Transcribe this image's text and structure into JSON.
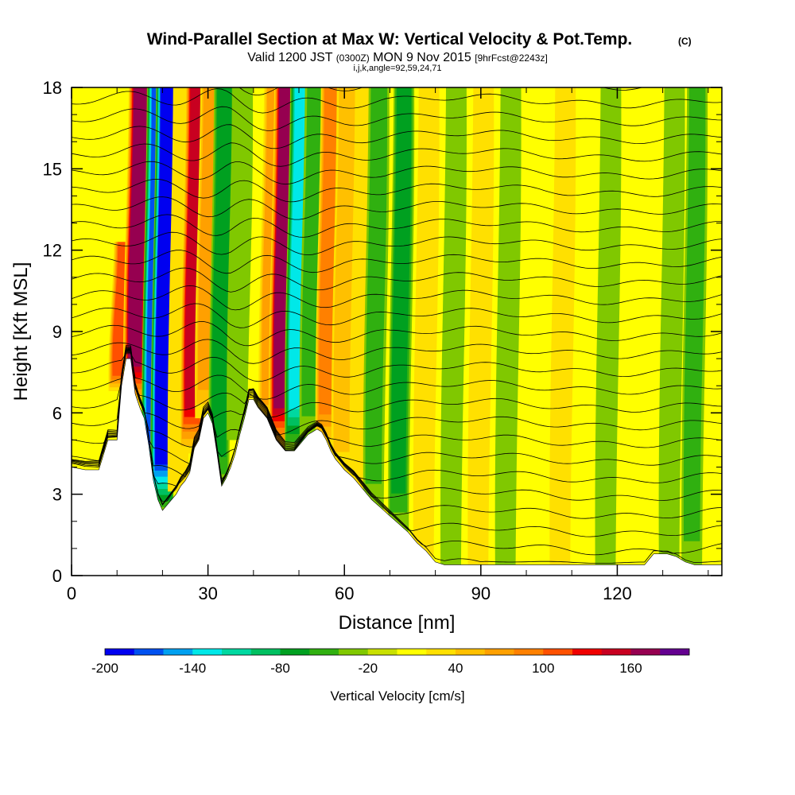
{
  "title": {
    "main": "Wind-Parallel Section at Max W: Vertical Velocity & Pot.Temp.",
    "copyright": "(C)",
    "valid_prefix": "Valid 1200 JST",
    "valid_z": "(0300Z)",
    "valid_date": "MON 9 Nov 2015",
    "forecast": "[9hrFcst@2243z]",
    "indices": "i,j,k,angle=92,59,24,71"
  },
  "colors": {
    "terrain": "#ffffff",
    "background": "#ffffff",
    "contour": "#000000",
    "palette": [
      "#0000f0",
      "#0050f0",
      "#00a0f0",
      "#00e8e8",
      "#00d8a0",
      "#00c060",
      "#00a020",
      "#30b010",
      "#80c800",
      "#c8e000",
      "#ffff00",
      "#ffe000",
      "#ffc000",
      "#ffa000",
      "#ff8000",
      "#ff5000",
      "#f00000",
      "#c80020",
      "#960050",
      "#640090"
    ]
  },
  "chart_data": {
    "type": "heatmap",
    "xlabel": "Distance [nm]",
    "ylabel": "Height [Kft MSL]",
    "xlim": [
      0,
      143
    ],
    "ylim": [
      0,
      18
    ],
    "x_ticks": [
      "0",
      "30",
      "60",
      "90",
      "120"
    ],
    "y_ticks": [
      "0",
      "3",
      "6",
      "9",
      "12",
      "15",
      "18"
    ],
    "colorbar": {
      "title": "Vertical Velocity [cm/s]",
      "min": -200,
      "max": 200,
      "step": 20,
      "labels": [
        "-200",
        "-140",
        "-80",
        "-20",
        "40",
        "100",
        "160"
      ]
    },
    "terrain_profile": [
      [
        0,
        4.0
      ],
      [
        3,
        3.9
      ],
      [
        6,
        3.9
      ],
      [
        8,
        5.0
      ],
      [
        10,
        5.0
      ],
      [
        11,
        7.0
      ],
      [
        12,
        8.0
      ],
      [
        13,
        8.0
      ],
      [
        14,
        6.7
      ],
      [
        15,
        6.2
      ],
      [
        16,
        5.8
      ],
      [
        17,
        4.8
      ],
      [
        18,
        3.5
      ],
      [
        19,
        2.8
      ],
      [
        20,
        2.4
      ],
      [
        21,
        2.6
      ],
      [
        22,
        2.8
      ],
      [
        23,
        3.0
      ],
      [
        24,
        3.3
      ],
      [
        25,
        3.5
      ],
      [
        26,
        3.8
      ],
      [
        27,
        4.7
      ],
      [
        28,
        5.0
      ],
      [
        29,
        5.8
      ],
      [
        30,
        6.0
      ],
      [
        31,
        5.6
      ],
      [
        32,
        4.5
      ],
      [
        33,
        3.3
      ],
      [
        34,
        3.6
      ],
      [
        35,
        4.0
      ],
      [
        36,
        4.5
      ],
      [
        37,
        5.2
      ],
      [
        38,
        5.8
      ],
      [
        39,
        6.5
      ],
      [
        40,
        6.5
      ],
      [
        41,
        6.2
      ],
      [
        42,
        6.0
      ],
      [
        43,
        5.8
      ],
      [
        44,
        5.4
      ],
      [
        45,
        5.0
      ],
      [
        46,
        4.8
      ],
      [
        47,
        4.6
      ],
      [
        48,
        4.6
      ],
      [
        49,
        4.6
      ],
      [
        50,
        4.8
      ],
      [
        51,
        5.0
      ],
      [
        52,
        5.2
      ],
      [
        53,
        5.3
      ],
      [
        54,
        5.4
      ],
      [
        55,
        5.3
      ],
      [
        56,
        5.0
      ],
      [
        57,
        4.6
      ],
      [
        58,
        4.3
      ],
      [
        59,
        4.1
      ],
      [
        60,
        3.9
      ],
      [
        62,
        3.6
      ],
      [
        64,
        3.2
      ],
      [
        66,
        2.8
      ],
      [
        68,
        2.5
      ],
      [
        70,
        2.2
      ],
      [
        72,
        1.9
      ],
      [
        74,
        1.6
      ],
      [
        76,
        1.2
      ],
      [
        78,
        0.9
      ],
      [
        80,
        0.5
      ],
      [
        82,
        0.4
      ],
      [
        84,
        0.4
      ],
      [
        126,
        0.4
      ],
      [
        127,
        0.6
      ],
      [
        128,
        0.8
      ],
      [
        131,
        0.8
      ],
      [
        133,
        0.7
      ],
      [
        135,
        0.5
      ],
      [
        137,
        0.4
      ],
      [
        143,
        0.4
      ]
    ],
    "w_features": [
      {
        "x": 11.0,
        "y_top": 12,
        "w": 90
      },
      {
        "x": 14.5,
        "y_top": 18,
        "w": 150
      },
      {
        "x": 18.5,
        "y_top": 18,
        "w": -150
      },
      {
        "x": 20.5,
        "y_top": 18,
        "w": -200
      },
      {
        "x": 24.0,
        "y_top": 18,
        "w": 20
      },
      {
        "x": 27.0,
        "y_top": 18,
        "w": 130
      },
      {
        "x": 30.0,
        "y_top": 18,
        "w": 60
      },
      {
        "x": 33.0,
        "y_top": 18,
        "w": -50
      },
      {
        "x": 37.0,
        "y_top": 18,
        "w": -20
      },
      {
        "x": 44.0,
        "y_top": 18,
        "w": 60
      },
      {
        "x": 46.5,
        "y_top": 18,
        "w": 160
      },
      {
        "x": 50.0,
        "y_top": 18,
        "w": -120
      },
      {
        "x": 53.0,
        "y_top": 18,
        "w": -40
      },
      {
        "x": 56.5,
        "y_top": 18,
        "w": 80
      },
      {
        "x": 60.0,
        "y_top": 18,
        "w": 40
      },
      {
        "x": 64.0,
        "y_top": 18,
        "w": 20
      },
      {
        "x": 67.0,
        "y_top": 18,
        "w": -40
      },
      {
        "x": 72.5,
        "y_top": 18,
        "w": -60
      },
      {
        "x": 78.0,
        "y_top": 18,
        "w": 20
      },
      {
        "x": 84.0,
        "y_top": 18,
        "w": -25
      },
      {
        "x": 90.0,
        "y_top": 18,
        "w": 15
      },
      {
        "x": 96.0,
        "y_top": 18,
        "w": -20
      },
      {
        "x": 108.0,
        "y_top": 18,
        "w": 15
      },
      {
        "x": 118.0,
        "y_top": 18,
        "w": -15
      },
      {
        "x": 132.0,
        "y_top": 18,
        "w": -25
      },
      {
        "x": 137.0,
        "y_top": 18,
        "w": -30
      }
    ]
  }
}
